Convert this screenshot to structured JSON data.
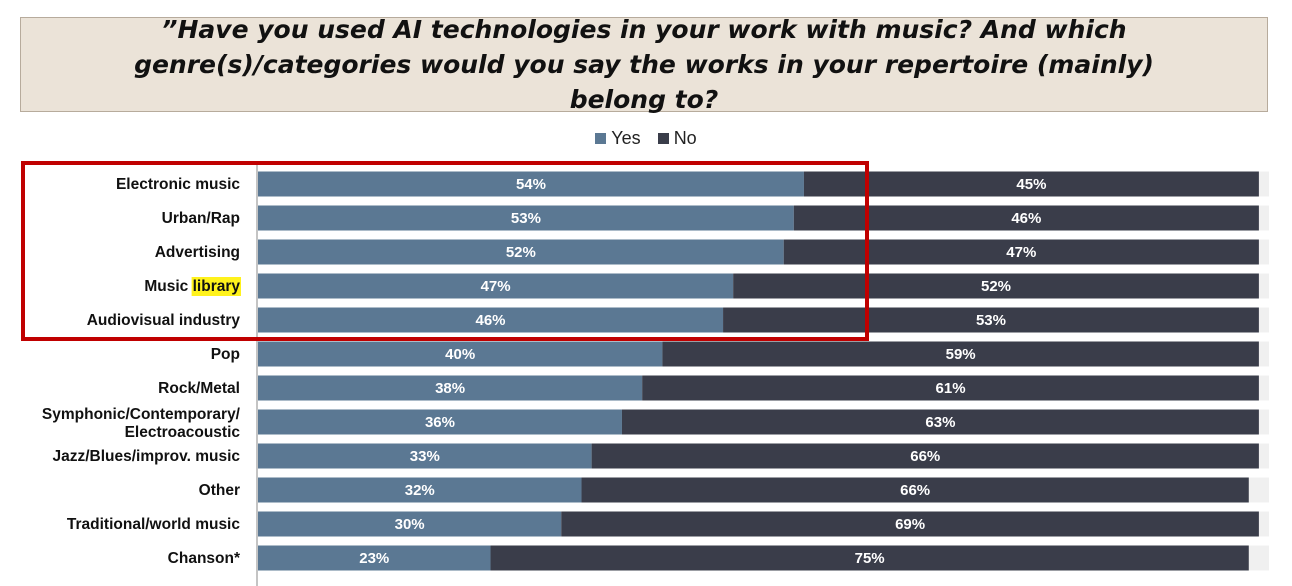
{
  "title": "”Have you used AI technologies in your work with music? And which genre(s)/categories would you say the works in your repertoire (mainly) belong to?",
  "legend": {
    "yes": "Yes",
    "no": "No"
  },
  "colors": {
    "yes": "#5b7893",
    "no": "#3a3d4a",
    "highlight_box": "#c00000",
    "highlight_word": "#fff21c",
    "title_bg": "#ebe3d8",
    "row_bg": "#f0f0f0"
  },
  "chart_data": {
    "type": "bar",
    "orientation": "horizontal",
    "stacked": true,
    "categories": [
      "Electronic music",
      "Urban/Rap",
      "Advertising",
      "Music library",
      "Audiovisual industry",
      "Pop",
      "Rock/Metal",
      "Symphonic/Contemporary/ Electroacoustic",
      "Jazz/Blues/improv. music",
      "Other",
      "Traditional/world music",
      "Chanson*"
    ],
    "series": [
      {
        "name": "Yes",
        "values": [
          54,
          53,
          52,
          47,
          46,
          40,
          38,
          36,
          33,
          32,
          30,
          23
        ]
      },
      {
        "name": "No",
        "values": [
          45,
          46,
          47,
          52,
          53,
          59,
          61,
          63,
          66,
          66,
          69,
          75
        ]
      }
    ],
    "value_suffix": "%",
    "xlim": [
      0,
      100
    ],
    "legend_position": "top-center",
    "highlighted_categories": [
      "Electronic music",
      "Urban/Rap",
      "Advertising",
      "Music library",
      "Audiovisual industry"
    ],
    "highlighted_word": "library"
  }
}
